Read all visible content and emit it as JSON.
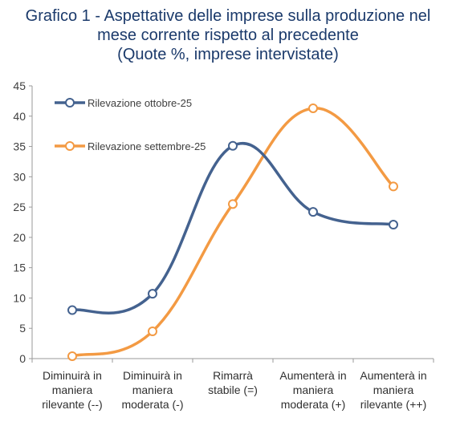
{
  "chart_data": {
    "type": "line",
    "title": [
      "Grafico 1 - Aspettative delle imprese sulla produzione nel",
      "mese corrente rispetto al precedente"
    ],
    "subtitle": "(Quote %, imprese intervistate)",
    "categories": [
      [
        "Diminuirà in",
        "maniera",
        "rilevante (--)"
      ],
      [
        "Diminuirà in",
        "maniera",
        "moderata (-)"
      ],
      [
        "Rimarrà",
        "stabile (=)"
      ],
      [
        "Aumenterà in",
        "maniera",
        "moderata (+)"
      ],
      [
        "Aumenterà in",
        "maniera",
        "rilevante (++)"
      ]
    ],
    "series": [
      {
        "name": "Rilevazione ottobre-25",
        "color": "#44628f",
        "values": [
          8.0,
          10.7,
          35.1,
          24.2,
          22.1
        ]
      },
      {
        "name": "Rilevazione settembre-25",
        "color": "#f39a43",
        "values": [
          0.4,
          4.5,
          25.5,
          41.3,
          28.4
        ]
      }
    ],
    "ylim": [
      0,
      45
    ],
    "yticks": [
      0,
      5,
      10,
      15,
      20,
      25,
      30,
      35,
      40,
      45
    ],
    "grid": false,
    "legend": "top-left"
  }
}
